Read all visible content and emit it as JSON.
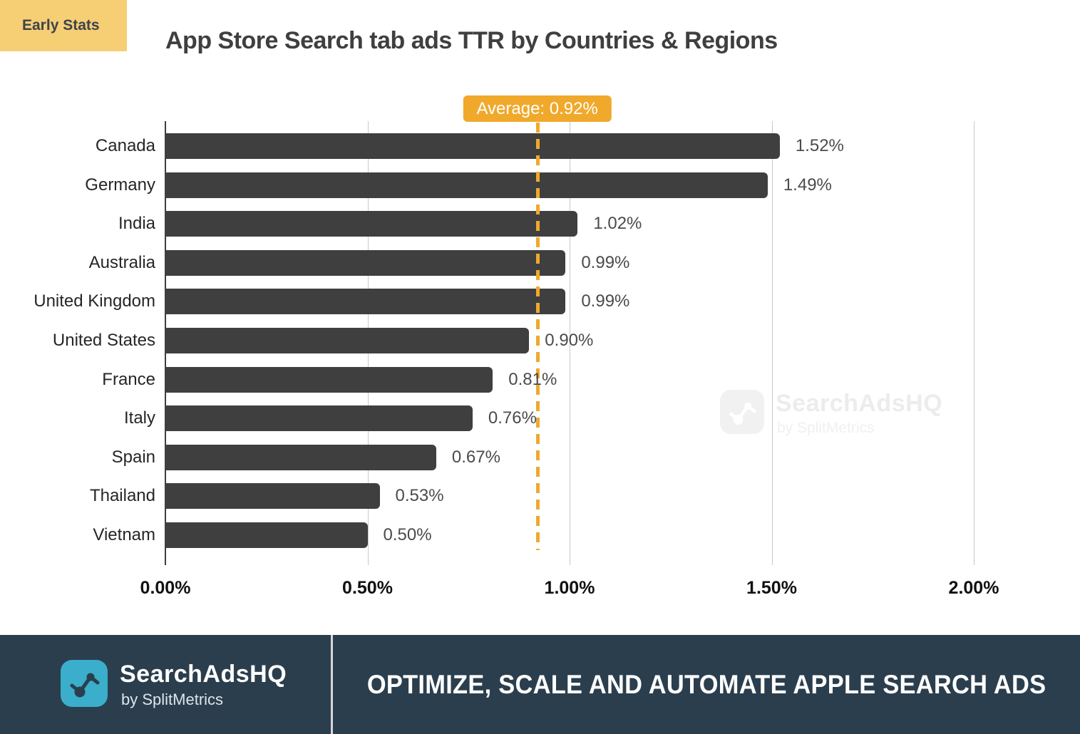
{
  "header": {
    "badge": "Early Stats",
    "title": "App Store Search tab ads TTR by Countries & Regions"
  },
  "chart_data": {
    "type": "bar",
    "orientation": "horizontal",
    "title": "App Store Search tab ads TTR by Countries & Regions",
    "categories": [
      "Canada",
      "Germany",
      "India",
      "Australia",
      "United Kingdom",
      "United States",
      "France",
      "Italy",
      "Spain",
      "Thailand",
      "Vietnam"
    ],
    "values": [
      1.52,
      1.49,
      1.02,
      0.99,
      0.99,
      0.9,
      0.81,
      0.76,
      0.67,
      0.53,
      0.5
    ],
    "value_labels": [
      "1.52%",
      "1.49%",
      "1.02%",
      "0.99%",
      "0.99%",
      "0.90%",
      "0.81%",
      "0.76%",
      "0.67%",
      "0.53%",
      "0.50%"
    ],
    "average": 0.92,
    "average_label": "Average: 0.92%",
    "x_ticks": [
      "0.00%",
      "0.50%",
      "1.00%",
      "1.50%",
      "2.00%"
    ],
    "x_tick_values": [
      0,
      0.5,
      1.0,
      1.5,
      2.0
    ],
    "xlim": [
      0,
      2.0
    ],
    "grid": "vertical",
    "legend": "none",
    "colors": {
      "bar": "#3F3F3F",
      "average": "#F0A92B",
      "grid": "#C9C9C9",
      "axis": "#3E3E3E"
    }
  },
  "watermark": {
    "brand": "SearchAdsHQ",
    "byline": "by SplitMetrics"
  },
  "footer": {
    "brand": "SearchAdsHQ",
    "byline": "by SplitMetrics",
    "tagline": "OPTIMIZE, SCALE AND AUTOMATE APPLE SEARCH ADS"
  },
  "colors": {
    "early_badge_bg": "#F6CE74",
    "footer_bg": "#2B3E4D",
    "logo_teal": "#3AAECB",
    "accent_orange": "#F0A92B"
  }
}
